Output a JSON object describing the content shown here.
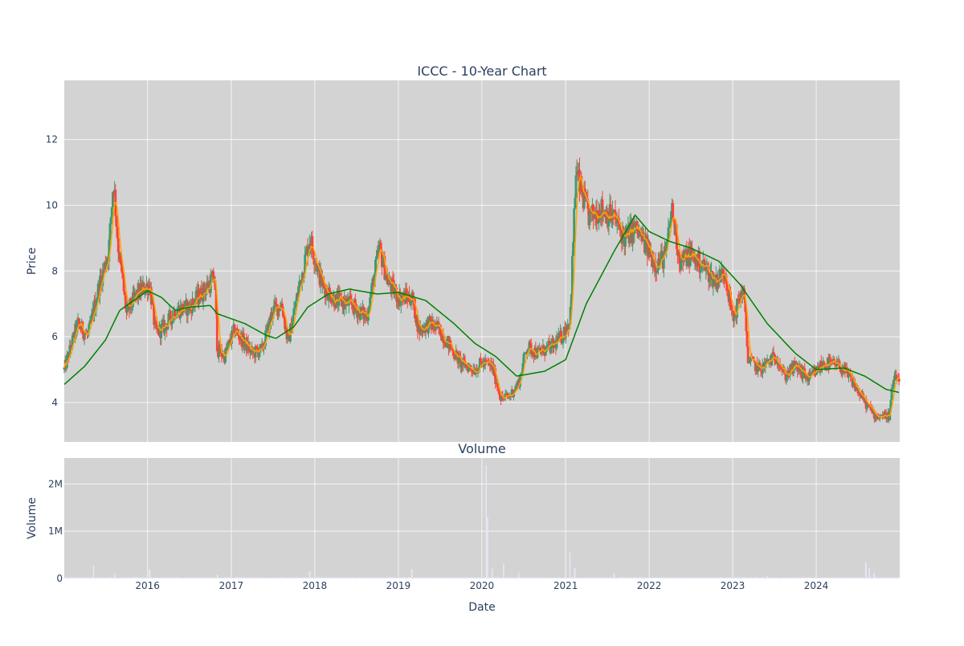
{
  "colors": {
    "plot_bg": "#d3d3d3",
    "up": "#3d9970",
    "down": "#ff4136",
    "ma_short": "#ffa500",
    "ma_long": "#008000",
    "volume": "#e5e5f5"
  },
  "chart_data": [
    {
      "type": "candlestick",
      "title": "ICCC - 10-Year Chart",
      "xlabel": "",
      "ylabel": "Price",
      "xlim": [
        "2015-01-02",
        "2024-12-31"
      ],
      "ylim": [
        2.8,
        13.8
      ],
      "x_ticks": [],
      "y_ticks": [
        "4",
        "6",
        "8",
        "10",
        "12"
      ],
      "grid": true,
      "series": [
        {
          "kind": "candles"
        },
        {
          "kind": "line",
          "color": "#ffa500"
        },
        {
          "kind": "line",
          "color": "#008000"
        }
      ],
      "anchors": [
        [
          "2015-01-02",
          5.0
        ],
        [
          "2015-03-01",
          6.4
        ],
        [
          "2015-04-15",
          6.0
        ],
        [
          "2015-06-01",
          7.5
        ],
        [
          "2015-07-15",
          8.6
        ],
        [
          "2015-08-05",
          10.8
        ],
        [
          "2015-08-25",
          8.8
        ],
        [
          "2015-10-01",
          6.7
        ],
        [
          "2015-11-15",
          7.3
        ],
        [
          "2016-01-10",
          7.6
        ],
        [
          "2016-02-05",
          6.1
        ],
        [
          "2016-03-15",
          6.3
        ],
        [
          "2016-05-01",
          6.8
        ],
        [
          "2016-07-01",
          6.9
        ],
        [
          "2016-09-15",
          7.5
        ],
        [
          "2016-10-20",
          7.8
        ],
        [
          "2016-11-01",
          5.6
        ],
        [
          "2016-12-01",
          5.4
        ],
        [
          "2017-01-15",
          6.2
        ],
        [
          "2017-03-01",
          5.8
        ],
        [
          "2017-04-01",
          5.5
        ],
        [
          "2017-05-15",
          5.6
        ],
        [
          "2017-07-01",
          6.8
        ],
        [
          "2017-08-10",
          7.0
        ],
        [
          "2017-09-05",
          5.8
        ],
        [
          "2017-10-20",
          7.4
        ],
        [
          "2017-12-10",
          9.0
        ],
        [
          "2018-02-01",
          7.6
        ],
        [
          "2018-04-01",
          7.1
        ],
        [
          "2018-06-01",
          7.0
        ],
        [
          "2018-08-15",
          6.6
        ],
        [
          "2018-10-10",
          8.7
        ],
        [
          "2018-11-15",
          7.7
        ],
        [
          "2019-01-01",
          7.2
        ],
        [
          "2019-03-01",
          7.2
        ],
        [
          "2019-04-01",
          6.2
        ],
        [
          "2019-05-15",
          6.4
        ],
        [
          "2019-07-01",
          6.2
        ],
        [
          "2019-08-15",
          5.7
        ],
        [
          "2019-10-01",
          5.2
        ],
        [
          "2019-12-01",
          5.0
        ],
        [
          "2020-01-01",
          5.2
        ],
        [
          "2020-02-15",
          5.1
        ],
        [
          "2020-03-25",
          4.1
        ],
        [
          "2020-05-01",
          4.2
        ],
        [
          "2020-06-10",
          4.6
        ],
        [
          "2020-07-15",
          5.7
        ],
        [
          "2020-09-01",
          5.5
        ],
        [
          "2020-11-01",
          5.7
        ],
        [
          "2020-12-15",
          6.0
        ],
        [
          "2021-01-20",
          6.5
        ],
        [
          "2021-02-15",
          11.0
        ],
        [
          "2021-03-15",
          10.3
        ],
        [
          "2021-04-15",
          9.6
        ],
        [
          "2021-06-01",
          9.9
        ],
        [
          "2021-08-01",
          9.6
        ],
        [
          "2021-09-15",
          9.0
        ],
        [
          "2021-11-01",
          9.3
        ],
        [
          "2021-12-15",
          8.8
        ],
        [
          "2022-02-01",
          8.2
        ],
        [
          "2022-03-15",
          8.5
        ],
        [
          "2022-04-10",
          9.9
        ],
        [
          "2022-05-15",
          8.3
        ],
        [
          "2022-07-01",
          8.5
        ],
        [
          "2022-09-01",
          8.1
        ],
        [
          "2022-10-15",
          7.7
        ],
        [
          "2022-11-30",
          8.0
        ],
        [
          "2023-01-01",
          6.5
        ],
        [
          "2023-02-15",
          7.5
        ],
        [
          "2023-03-10",
          5.3
        ],
        [
          "2023-05-01",
          5.0
        ],
        [
          "2023-06-15",
          5.3
        ],
        [
          "2023-07-15",
          5.4
        ],
        [
          "2023-08-15",
          4.8
        ],
        [
          "2023-10-01",
          5.1
        ],
        [
          "2023-12-01",
          4.7
        ],
        [
          "2024-02-01",
          5.2
        ],
        [
          "2024-04-15",
          5.1
        ],
        [
          "2024-06-01",
          4.7
        ],
        [
          "2024-08-01",
          4.0
        ],
        [
          "2024-09-15",
          3.6
        ],
        [
          "2024-11-15",
          3.6
        ],
        [
          "2024-12-01",
          4.6
        ],
        [
          "2024-12-31",
          4.8
        ]
      ],
      "ma_long_anchors": [
        [
          "2015-01-02",
          4.55
        ],
        [
          "2015-04-01",
          5.1
        ],
        [
          "2015-07-01",
          5.9
        ],
        [
          "2015-09-01",
          6.8
        ],
        [
          "2016-01-01",
          7.4
        ],
        [
          "2016-03-01",
          7.2
        ],
        [
          "2016-05-01",
          6.8
        ],
        [
          "2016-07-01",
          6.9
        ],
        [
          "2016-10-01",
          6.95
        ],
        [
          "2016-11-01",
          6.7
        ],
        [
          "2017-03-01",
          6.4
        ],
        [
          "2017-06-01",
          6.05
        ],
        [
          "2017-07-15",
          5.95
        ],
        [
          "2017-10-01",
          6.3
        ],
        [
          "2017-12-01",
          6.9
        ],
        [
          "2018-03-01",
          7.3
        ],
        [
          "2018-06-01",
          7.45
        ],
        [
          "2018-10-01",
          7.3
        ],
        [
          "2019-01-01",
          7.35
        ],
        [
          "2019-05-01",
          7.1
        ],
        [
          "2019-09-01",
          6.4
        ],
        [
          "2019-12-01",
          5.8
        ],
        [
          "2020-03-01",
          5.4
        ],
        [
          "2020-06-01",
          4.8
        ],
        [
          "2020-10-01",
          4.95
        ],
        [
          "2021-01-01",
          5.3
        ],
        [
          "2021-04-01",
          7.0
        ],
        [
          "2021-08-01",
          8.6
        ],
        [
          "2021-11-01",
          9.7
        ],
        [
          "2022-01-01",
          9.2
        ],
        [
          "2022-04-01",
          8.9
        ],
        [
          "2022-07-01",
          8.7
        ],
        [
          "2022-11-01",
          8.3
        ],
        [
          "2023-02-01",
          7.6
        ],
        [
          "2023-06-01",
          6.4
        ],
        [
          "2023-10-01",
          5.5
        ],
        [
          "2024-01-01",
          5.0
        ],
        [
          "2024-05-01",
          5.05
        ],
        [
          "2024-08-01",
          4.8
        ],
        [
          "2024-11-01",
          4.4
        ],
        [
          "2024-12-31",
          4.3
        ]
      ]
    },
    {
      "type": "bar",
      "title": "Volume",
      "xlabel": "Date",
      "ylabel": "Volume",
      "ylim": [
        0,
        2550000
      ],
      "x_ticks": [
        "2016",
        "2017",
        "2018",
        "2019",
        "2020",
        "2021",
        "2022",
        "2023",
        "2024"
      ],
      "y_ticks": [
        "0",
        "1M",
        "2M"
      ],
      "grid": true,
      "spikes": [
        [
          "2015-05-10",
          280000
        ],
        [
          "2015-08-10",
          110000
        ],
        [
          "2016-01-10",
          190000
        ],
        [
          "2016-11-01",
          80000
        ],
        [
          "2017-12-10",
          150000
        ],
        [
          "2019-03-01",
          200000
        ],
        [
          "2020-01-20",
          2400000
        ],
        [
          "2020-01-25",
          1300000
        ],
        [
          "2020-02-15",
          210000
        ],
        [
          "2020-04-05",
          320000
        ],
        [
          "2020-06-10",
          130000
        ],
        [
          "2021-01-20",
          550000
        ],
        [
          "2021-02-10",
          220000
        ],
        [
          "2021-08-01",
          110000
        ],
        [
          "2023-06-01",
          60000
        ],
        [
          "2024-08-05",
          330000
        ],
        [
          "2024-08-20",
          220000
        ],
        [
          "2024-09-10",
          120000
        ]
      ]
    }
  ]
}
